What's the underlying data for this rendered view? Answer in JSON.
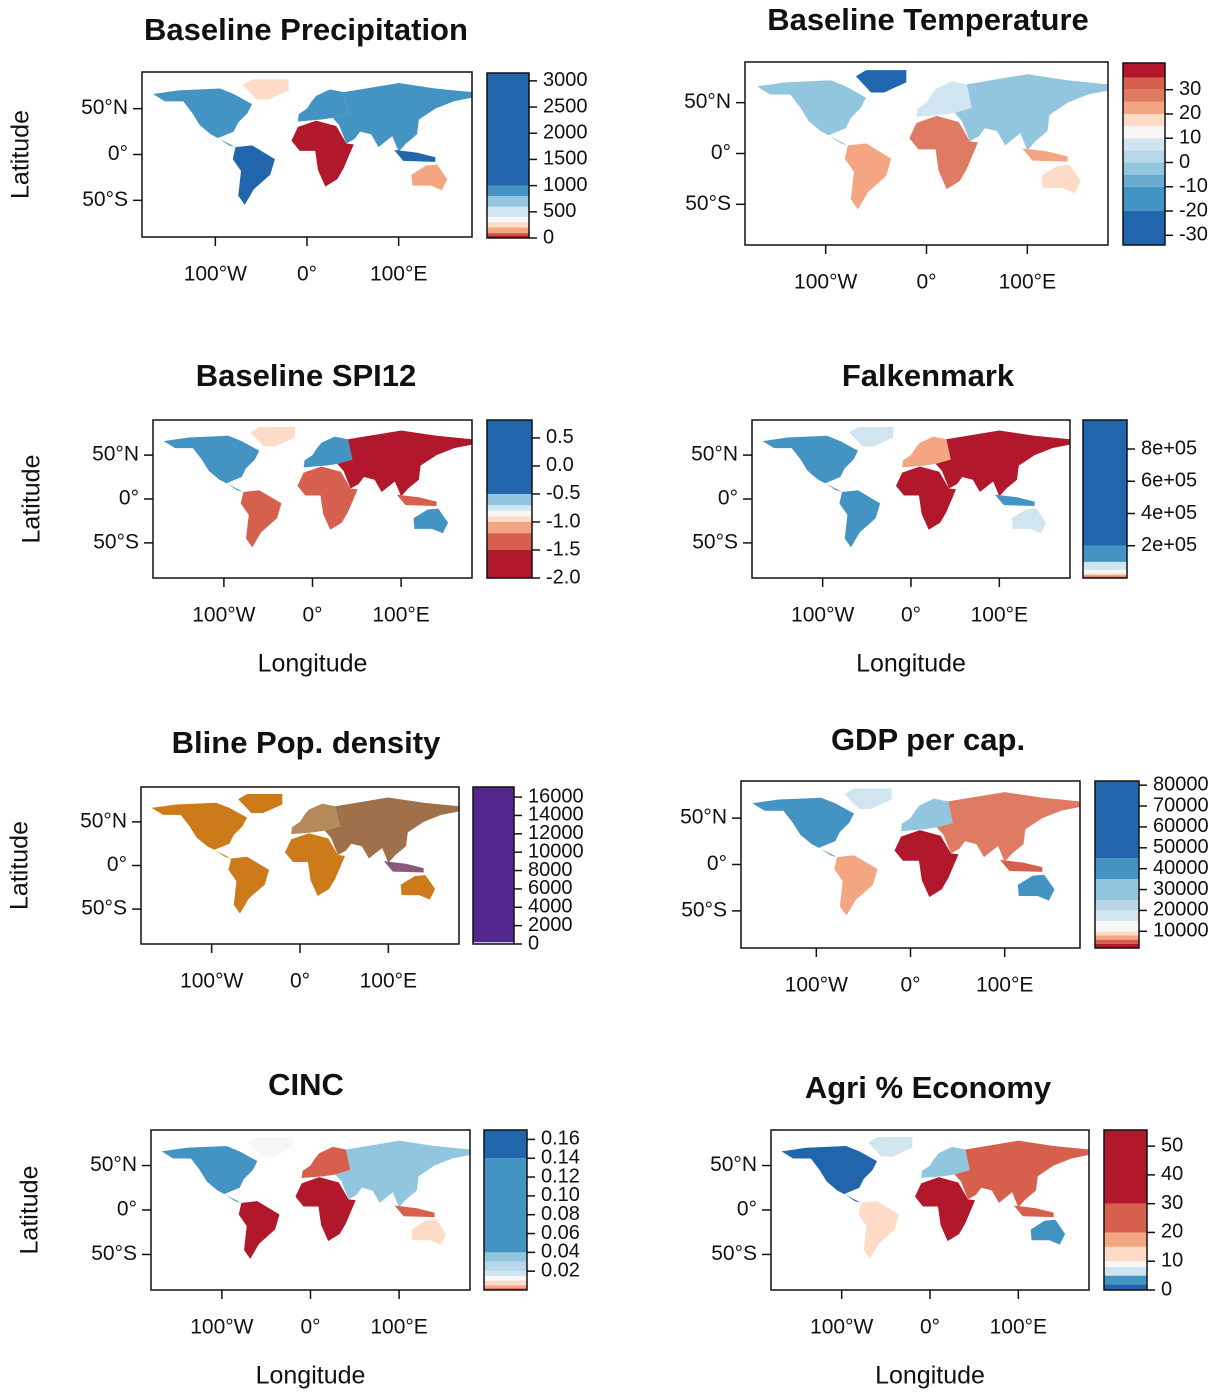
{
  "chart_data": [
    {
      "type": "map",
      "title": "Baseline Precipitation",
      "ylabel": "Latitude",
      "xlim": [
        -180,
        180
      ],
      "ylim": [
        -90,
        90
      ],
      "xticks": [
        {
          "value": -100,
          "label": "100°W"
        },
        {
          "value": 0,
          "label": "0°"
        },
        {
          "value": 100,
          "label": "100°E"
        }
      ],
      "yticks": [
        {
          "value": -50,
          "label": "50°S"
        },
        {
          "value": 0,
          "label": "0°"
        },
        {
          "value": 50,
          "label": "50°N"
        }
      ],
      "colorbar": {
        "clim": [
          0,
          3150
        ],
        "ticks": [
          0,
          500,
          1000,
          1500,
          2000,
          2500,
          3000
        ],
        "breaks": [
          0,
          50,
          100,
          200,
          300,
          400,
          600,
          800,
          1000,
          3150
        ],
        "colors": [
          "#b2182b",
          "#d6604d",
          "#f4a582",
          "#fddbc7",
          "#f7f7f7",
          "#d1e5f0",
          "#92c5de",
          "#4393c3",
          "#2166ac"
        ]
      }
    },
    {
      "type": "map",
      "title": "Baseline Temperature",
      "xlim": [
        -180,
        180
      ],
      "ylim": [
        -90,
        90
      ],
      "xticks": [
        {
          "value": -100,
          "label": "100°W"
        },
        {
          "value": 0,
          "label": "0°"
        },
        {
          "value": 100,
          "label": "100°E"
        }
      ],
      "yticks": [
        {
          "value": -50,
          "label": "50°S"
        },
        {
          "value": 0,
          "label": "0°"
        },
        {
          "value": 50,
          "label": "50°N"
        }
      ],
      "colorbar": {
        "clim": [
          -34,
          41
        ],
        "ticks": [
          -30,
          -20,
          -10,
          0,
          10,
          20,
          30
        ],
        "breaks": [
          -34,
          -20,
          -10,
          -5,
          0,
          5,
          10,
          15,
          20,
          25,
          30,
          35,
          41
        ],
        "colors": [
          "#2166ac",
          "#4393c3",
          "#6aa9d0",
          "#92c5de",
          "#b8d7e8",
          "#d1e5f0",
          "#f7f7f7",
          "#fddbc7",
          "#f4a582",
          "#e07b63",
          "#d6604d",
          "#b2182b"
        ]
      }
    },
    {
      "type": "map",
      "title": "Baseline SPI12",
      "ylabel": "Latitude",
      "xlabel": "Longitude",
      "xlim": [
        -180,
        180
      ],
      "ylim": [
        -90,
        90
      ],
      "xticks": [
        {
          "value": -100,
          "label": "100°W"
        },
        {
          "value": 0,
          "label": "0°"
        },
        {
          "value": 100,
          "label": "100°E"
        }
      ],
      "yticks": [
        {
          "value": -50,
          "label": "50°S"
        },
        {
          "value": 0,
          "label": "0°"
        },
        {
          "value": 50,
          "label": "50°N"
        }
      ],
      "colorbar": {
        "clim": [
          -2.0,
          0.82
        ],
        "ticks": [
          {
            "value": -2,
            "label": "-2.0"
          },
          -1.5,
          {
            "value": -1,
            "label": "-1.0"
          },
          -0.5,
          {
            "value": 0,
            "label": "0.0"
          },
          0.5
        ],
        "breaks": [
          -2.0,
          -1.5,
          -1.2,
          -1.0,
          -0.9,
          -0.8,
          -0.7,
          -0.5,
          0.82
        ],
        "colors": [
          "#b2182b",
          "#d6604d",
          "#f4a582",
          "#fddbc7",
          "#f7f7f7",
          "#d1e5f0",
          "#92c5de",
          "#2166ac"
        ]
      }
    },
    {
      "type": "map",
      "title": "Falkenmark",
      "xlabel": "Longitude",
      "xlim": [
        -180,
        180
      ],
      "ylim": [
        -90,
        90
      ],
      "xticks": [
        {
          "value": -100,
          "label": "100°W"
        },
        {
          "value": 0,
          "label": "0°"
        },
        {
          "value": 100,
          "label": "100°E"
        }
      ],
      "yticks": [
        {
          "value": -50,
          "label": "50°S"
        },
        {
          "value": 0,
          "label": "0°"
        },
        {
          "value": 50,
          "label": "50°N"
        }
      ],
      "colorbar": {
        "clim": [
          0,
          980000
        ],
        "ticks": [
          {
            "value": 200000,
            "label": "2e+05"
          },
          {
            "value": 400000,
            "label": "4e+05"
          },
          {
            "value": 600000,
            "label": "6e+05"
          },
          {
            "value": 800000,
            "label": "8e+05"
          }
        ],
        "breaks": [
          0,
          10000,
          20000,
          30000,
          50000,
          100000,
          200000,
          980000
        ],
        "colors": [
          "#d6604d",
          "#f4a582",
          "#fddbc7",
          "#f7f7f7",
          "#d1e5f0",
          "#4393c3",
          "#2166ac"
        ]
      }
    },
    {
      "type": "map",
      "title": "Bline Pop. density",
      "ylabel": "Latitude",
      "xlim": [
        -180,
        180
      ],
      "ylim": [
        -90,
        90
      ],
      "xticks": [
        {
          "value": -100,
          "label": "100°W"
        },
        {
          "value": 0,
          "label": "0°"
        },
        {
          "value": 100,
          "label": "100°E"
        }
      ],
      "yticks": [
        {
          "value": -50,
          "label": "50°S"
        },
        {
          "value": 0,
          "label": "0°"
        },
        {
          "value": 50,
          "label": "50°N"
        }
      ],
      "colorbar": {
        "clim": [
          0,
          17100
        ],
        "ticks": [
          0,
          2000,
          4000,
          6000,
          8000,
          10000,
          12000,
          14000,
          16000
        ],
        "breaks": [
          0,
          200,
          17100
        ],
        "colors": [
          "#d9d9e8",
          "#54278f"
        ]
      }
    },
    {
      "type": "map",
      "title": "GDP per cap.",
      "xlim": [
        -180,
        180
      ],
      "ylim": [
        -90,
        90
      ],
      "xticks": [
        {
          "value": -100,
          "label": "100°W"
        },
        {
          "value": 0,
          "label": "0°"
        },
        {
          "value": 100,
          "label": "100°E"
        }
      ],
      "yticks": [
        {
          "value": -50,
          "label": "50°S"
        },
        {
          "value": 0,
          "label": "0°"
        },
        {
          "value": 50,
          "label": "50°N"
        }
      ],
      "colorbar": {
        "clim": [
          2000,
          82000
        ],
        "ticks": [
          10000,
          20000,
          30000,
          40000,
          50000,
          60000,
          70000,
          80000
        ],
        "breaks": [
          2000,
          4000,
          6000,
          8000,
          10000,
          15000,
          20000,
          25000,
          35000,
          45000,
          82000
        ],
        "colors": [
          "#b2182b",
          "#d6604d",
          "#f4a582",
          "#fddbc7",
          "#f7f7f7",
          "#d1e5f0",
          "#b8d7e8",
          "#92c5de",
          "#4393c3",
          "#2166ac"
        ]
      }
    },
    {
      "type": "map",
      "title": "CINC",
      "ylabel": "Latitude",
      "xlabel": "Longitude",
      "xlim": [
        -180,
        180
      ],
      "ylim": [
        -90,
        90
      ],
      "xticks": [
        {
          "value": -100,
          "label": "100°W"
        },
        {
          "value": 0,
          "label": "0°"
        },
        {
          "value": 100,
          "label": "100°E"
        }
      ],
      "yticks": [
        {
          "value": -50,
          "label": "50°S"
        },
        {
          "value": 0,
          "label": "0°"
        },
        {
          "value": 50,
          "label": "50°N"
        }
      ],
      "colorbar": {
        "clim": [
          0,
          0.17
        ],
        "ticks": [
          0.02,
          0.04,
          0.06,
          0.08,
          {
            "value": 0.1,
            "label": "0.10"
          },
          0.12,
          0.14,
          0.16
        ],
        "breaks": [
          0,
          0.002,
          0.005,
          0.01,
          0.015,
          0.02,
          0.03,
          0.04,
          0.14,
          0.17
        ],
        "colors": [
          "#d6604d",
          "#f4a582",
          "#fddbc7",
          "#f7f7f7",
          "#d1e5f0",
          "#b8d7e8",
          "#92c5de",
          "#4393c3",
          "#2166ac"
        ]
      }
    },
    {
      "type": "map",
      "title": "Agri % Economy",
      "xlabel": "Longitude",
      "xlim": [
        -180,
        180
      ],
      "ylim": [
        -90,
        90
      ],
      "xticks": [
        {
          "value": -100,
          "label": "100°W"
        },
        {
          "value": 0,
          "label": "0°"
        },
        {
          "value": 100,
          "label": "100°E"
        }
      ],
      "yticks": [
        {
          "value": -50,
          "label": "50°S"
        },
        {
          "value": 0,
          "label": "0°"
        },
        {
          "value": 50,
          "label": "50°N"
        }
      ],
      "colorbar": {
        "clim": [
          0,
          55.6
        ],
        "ticks": [
          0,
          10,
          20,
          30,
          40,
          50
        ],
        "breaks": [
          0,
          2,
          5,
          8,
          10,
          15,
          20,
          30,
          55.6
        ],
        "colors": [
          "#2166ac",
          "#4393c3",
          "#d1e5f0",
          "#f7f7f7",
          "#fddbc7",
          "#f4a582",
          "#d6604d",
          "#b2182b"
        ]
      }
    }
  ]
}
